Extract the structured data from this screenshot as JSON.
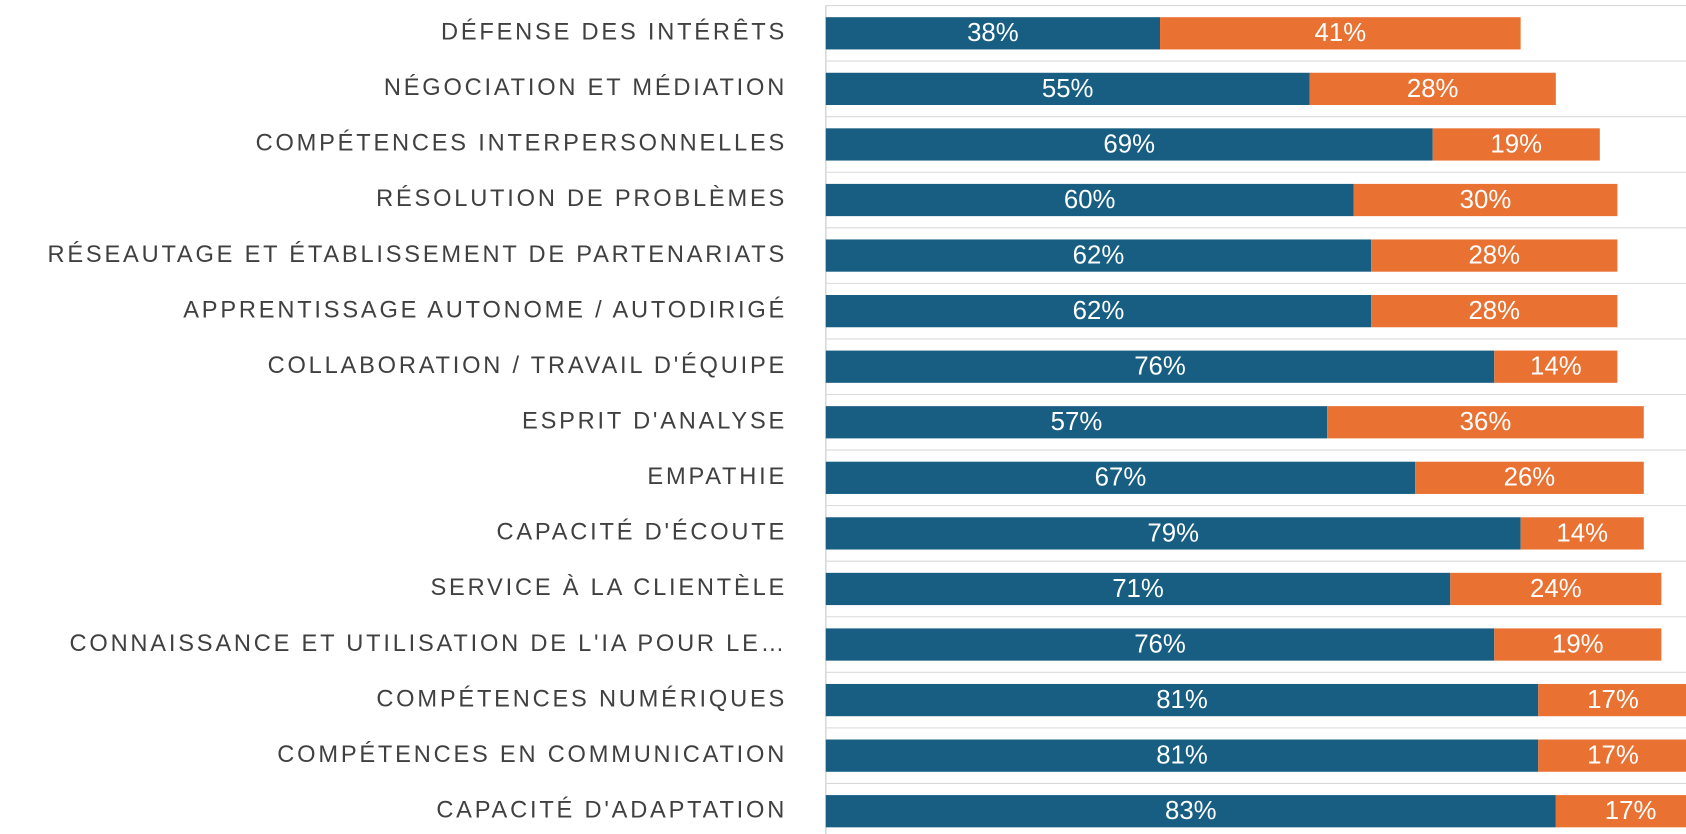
{
  "chart_data": {
    "type": "stacked-barh",
    "categories": [
      "DÉFENSE DES INTÉRÊTS",
      "NÉGOCIATION ET MÉDIATION",
      "COMPÉTENCES INTERPERSONNELLES",
      "RÉSOLUTION DE PROBLÈMES",
      "RÉSEAUTAGE ET ÉTABLISSEMENT DE PARTENARIATS",
      "APPRENTISSAGE AUTONOME / AUTODIRIGÉ",
      "COLLABORATION / TRAVAIL D'ÉQUIPE",
      "ESPRIT D'ANALYSE",
      "EMPATHIE",
      "CAPACITÉ D'ÉCOUTE",
      "SERVICE À LA CLIENTÈLE",
      "CONNAISSANCE ET UTILISATION DE L'IA POUR LE…",
      "COMPÉTENCES NUMÉRIQUES",
      "COMPÉTENCES EN COMMUNICATION",
      "CAPACITÉ D'ADAPTATION"
    ],
    "series": [
      {
        "color": "#175e82",
        "values": [
          38,
          55,
          69,
          60,
          62,
          62,
          76,
          57,
          67,
          79,
          71,
          76,
          81,
          81,
          83
        ],
        "value_labels": [
          "38%",
          "55%",
          "69%",
          "60%",
          "62%",
          "62%",
          "76%",
          "57%",
          "67%",
          "79%",
          "71%",
          "76%",
          "81%",
          "81%",
          "83%"
        ]
      },
      {
        "color": "#e97132",
        "values": [
          41,
          28,
          19,
          30,
          28,
          28,
          14,
          36,
          26,
          14,
          24,
          19,
          17,
          17,
          17
        ],
        "value_labels": [
          "41%",
          "28%",
          "19%",
          "30%",
          "28%",
          "28%",
          "14%",
          "36%",
          "26%",
          "14%",
          "24%",
          "19%",
          "17%",
          "17%",
          "17%"
        ]
      }
    ],
    "xlim": [
      0,
      100
    ]
  }
}
